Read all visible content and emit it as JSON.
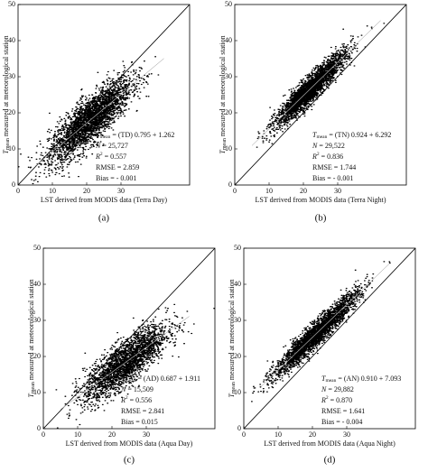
{
  "chart_data": [
    {
      "type": "scatter",
      "caption": "(a)",
      "x_label": "LST derived from MODIS data (Terra Day)",
      "y_label": {
        "symbol": "T",
        "sub": "mean",
        "rest": " measured at meteorological station"
      },
      "xlim": [
        0,
        50
      ],
      "ylim": [
        0,
        50
      ],
      "xticks": [
        0,
        10,
        20,
        30
      ],
      "yticks": [
        0,
        10,
        20,
        30,
        40,
        50
      ],
      "fit": {
        "symbol": "T",
        "sub": "mean",
        "prefix": "= (TD)",
        "slope": 0.795,
        "plus": "+",
        "intercept": 1.262
      },
      "stats": [
        {
          "name": "N",
          "text": "= 25,727"
        },
        {
          "name": "R",
          "sup": "2",
          "text": "= 0.557"
        },
        {
          "name": "RMSE",
          "text": "= 2.859"
        },
        {
          "name": "Bias",
          "text": "= - 0.001"
        }
      ]
    },
    {
      "type": "scatter",
      "caption": "(b)",
      "x_label": "LST derived from MODIS data (Terra Night)",
      "y_label": {
        "symbol": "T",
        "sub": "mean",
        "rest": " measured at meteorological station"
      },
      "xlim": [
        0,
        50
      ],
      "ylim": [
        0,
        50
      ],
      "xticks": [
        0,
        10,
        20,
        30
      ],
      "yticks": [
        0,
        10,
        20,
        30,
        40,
        50
      ],
      "fit": {
        "symbol": "T",
        "sub": "mean",
        "prefix": "= (TN)",
        "slope": 0.924,
        "plus": "+",
        "intercept": 6.292
      },
      "stats": [
        {
          "name": "N",
          "text": "= 29,522"
        },
        {
          "name": "R",
          "sup": "2",
          "text": "= 0.836"
        },
        {
          "name": "RMSE",
          "text": "= 1.744"
        },
        {
          "name": "Bias",
          "text": "= - 0.001"
        }
      ]
    },
    {
      "type": "scatter",
      "caption": "(c)",
      "x_label": "LST derived from MODIS data (Aqua Day)",
      "y_label": {
        "symbol": "T",
        "sub": "mean",
        "rest": " measured at meteorological station"
      },
      "xlim": [
        0,
        50
      ],
      "ylim": [
        0,
        50
      ],
      "xticks": [
        0,
        10,
        20,
        30
      ],
      "yticks": [
        0,
        10,
        20,
        30,
        40,
        50
      ],
      "fit": {
        "symbol": "T",
        "sub": "mean",
        "prefix": "= (AD)",
        "slope": 0.687,
        "plus": "+",
        "intercept": 1.911
      },
      "stats": [
        {
          "name": "N",
          "text": "= 15,509"
        },
        {
          "name": "R",
          "sup": "2",
          "text": "= 0.556"
        },
        {
          "name": "RMSE",
          "text": "= 2.841"
        },
        {
          "name": "Bias",
          "text": "= 0.015"
        }
      ]
    },
    {
      "type": "scatter",
      "caption": "(d)",
      "x_label": "LST derived from MODIS data (Aqua Night)",
      "y_label": {
        "symbol": "T",
        "sub": "mean",
        "rest": " measured at meteorological station"
      },
      "xlim": [
        0,
        50
      ],
      "ylim": [
        0,
        50
      ],
      "xticks": [
        0,
        10,
        20,
        30
      ],
      "yticks": [
        0,
        10,
        20,
        30,
        40,
        50
      ],
      "fit": {
        "symbol": "T",
        "sub": "mean",
        "prefix": "= (AN)",
        "slope": {
          "value": 0.91,
          "label": "0.910"
        },
        "plus": "+",
        "intercept": 7.093
      },
      "stats": [
        {
          "name": "N",
          "text": "= 29,882"
        },
        {
          "name": "R",
          "sup": "2",
          "text": "= 0.870"
        },
        {
          "name": "RMSE",
          "text": "= 1.641"
        },
        {
          "name": "Bias",
          "text": "= - 0.004"
        }
      ]
    }
  ]
}
